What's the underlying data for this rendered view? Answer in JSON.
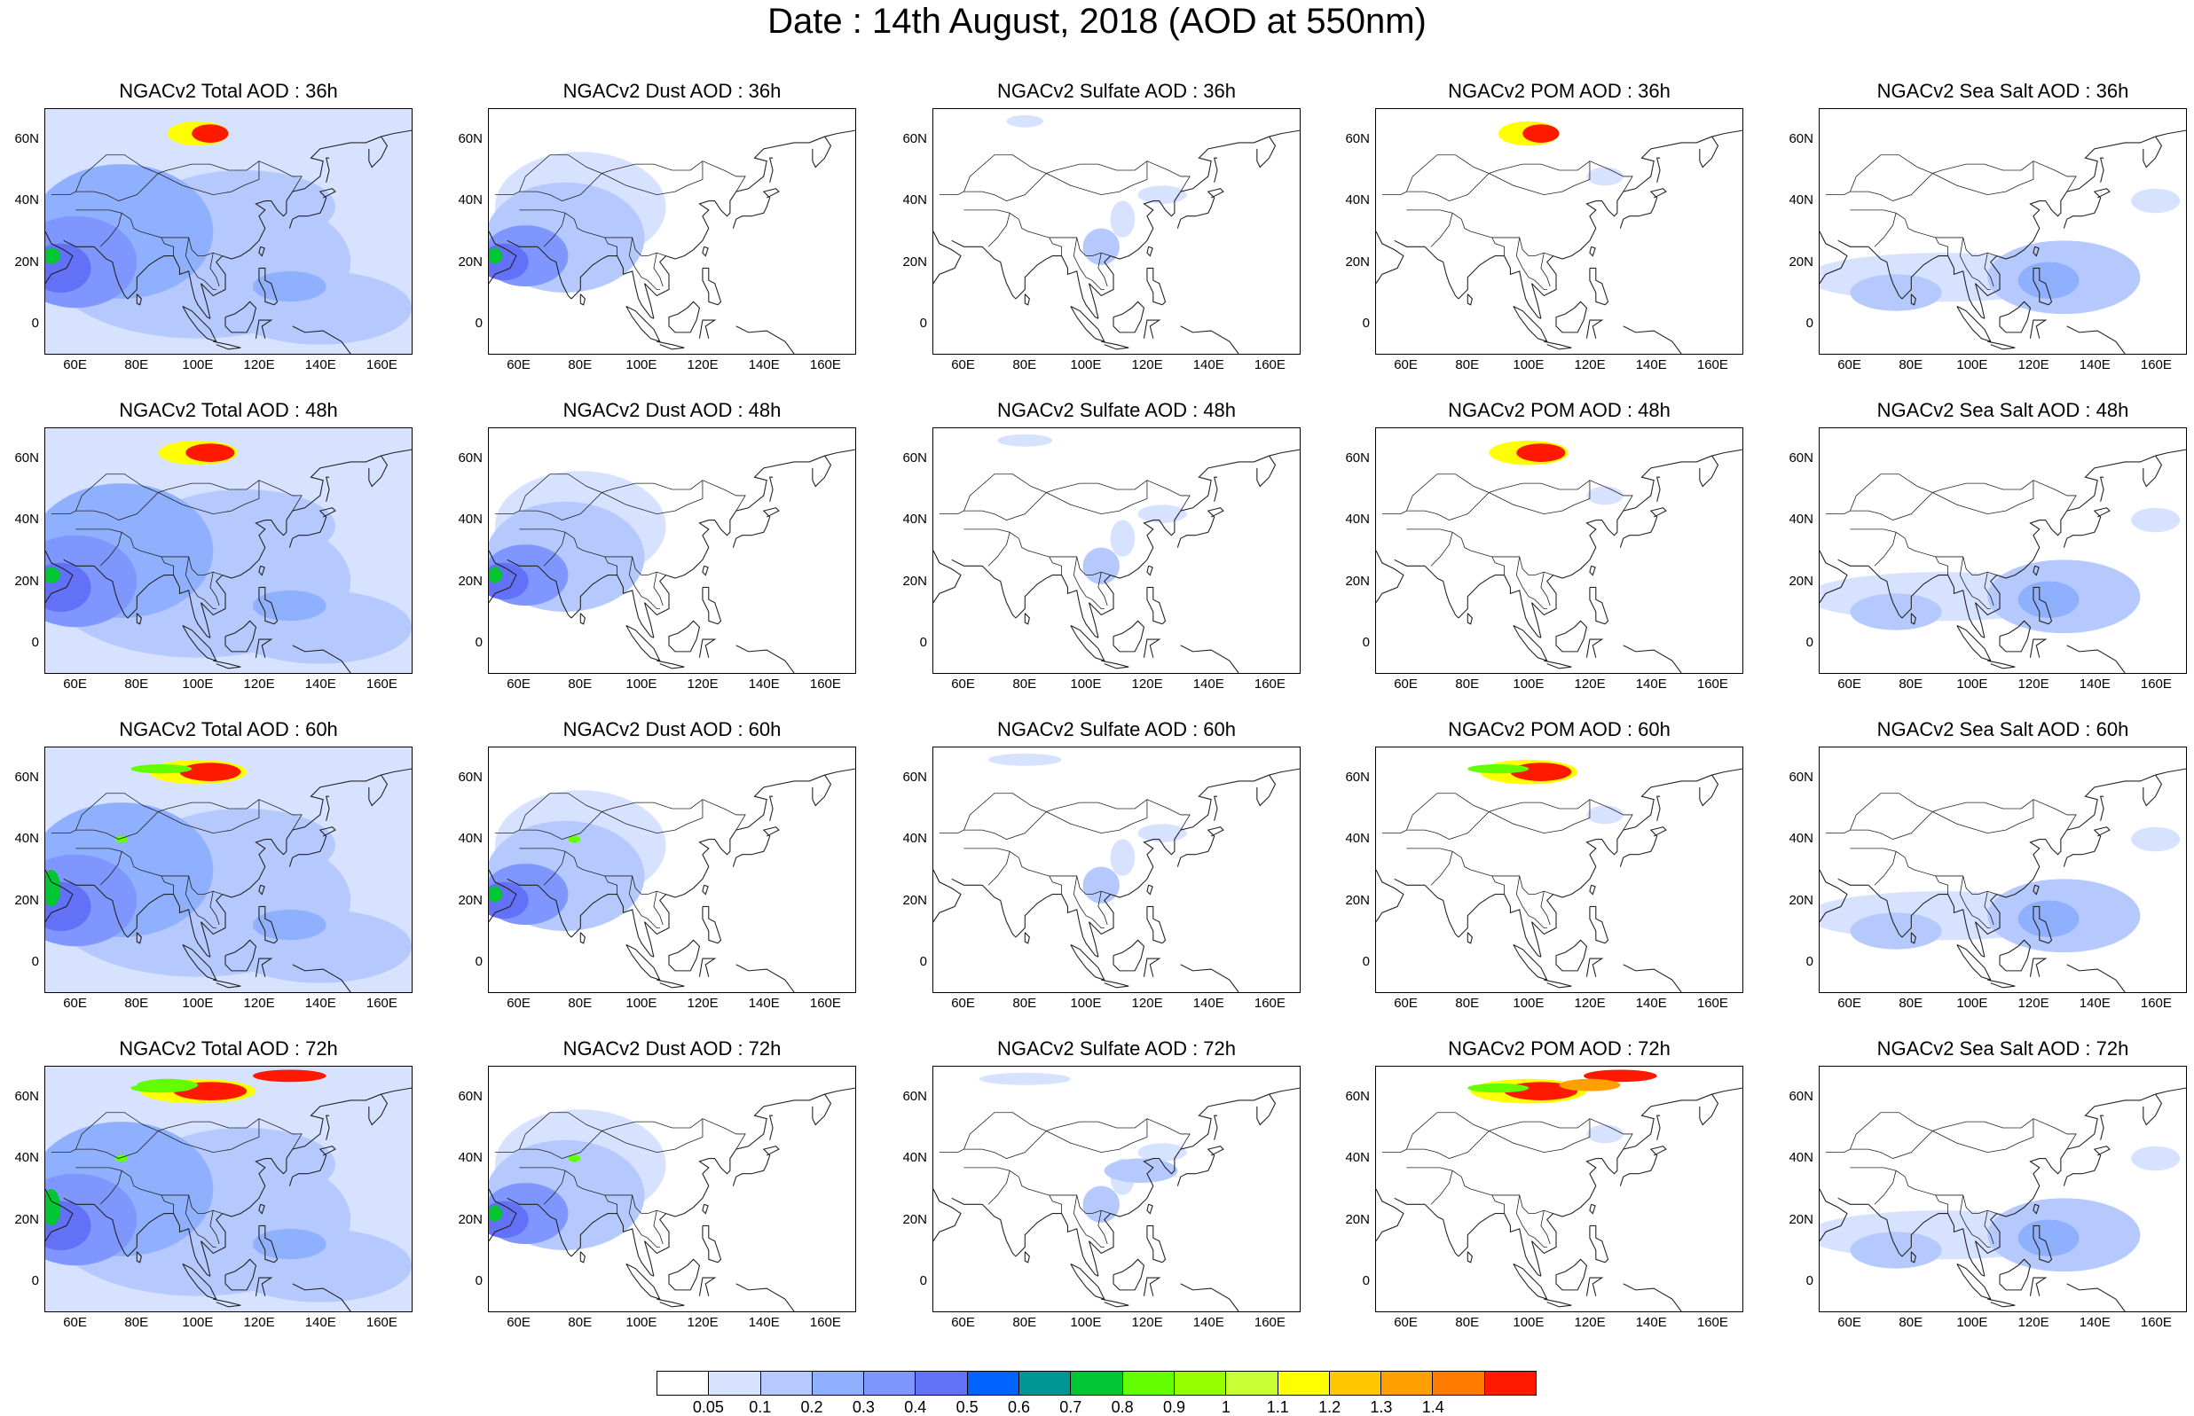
{
  "title": "Date : 14th August, 2018 (AOD at 550nm)",
  "axes": {
    "y_ticks": [
      "60N",
      "40N",
      "20N",
      "0"
    ],
    "x_ticks": [
      "60E",
      "80E",
      "100E",
      "120E",
      "140E",
      "160E"
    ]
  },
  "panels": [
    {
      "title": "NGACv2 Total AOD : 36h",
      "species": "total",
      "lead": "36h"
    },
    {
      "title": "NGACv2 Dust AOD : 36h",
      "species": "dust",
      "lead": "36h"
    },
    {
      "title": "NGACv2 Sulfate AOD : 36h",
      "species": "sulfate",
      "lead": "36h"
    },
    {
      "title": "NGACv2 POM AOD : 36h",
      "species": "pom",
      "lead": "36h"
    },
    {
      "title": "NGACv2 Sea Salt AOD : 36h",
      "species": "seasalt",
      "lead": "36h"
    },
    {
      "title": "NGACv2 Total AOD : 48h",
      "species": "total",
      "lead": "48h"
    },
    {
      "title": "NGACv2 Dust AOD : 48h",
      "species": "dust",
      "lead": "48h"
    },
    {
      "title": "NGACv2 Sulfate AOD : 48h",
      "species": "sulfate",
      "lead": "48h"
    },
    {
      "title": "NGACv2 POM AOD : 48h",
      "species": "pom",
      "lead": "48h"
    },
    {
      "title": "NGACv2 Sea Salt AOD : 48h",
      "species": "seasalt",
      "lead": "48h"
    },
    {
      "title": "NGACv2 Total AOD : 60h",
      "species": "total",
      "lead": "60h"
    },
    {
      "title": "NGACv2 Dust AOD : 60h",
      "species": "dust",
      "lead": "60h"
    },
    {
      "title": "NGACv2 Sulfate AOD : 60h",
      "species": "sulfate",
      "lead": "60h"
    },
    {
      "title": "NGACv2 POM AOD : 60h",
      "species": "pom",
      "lead": "60h"
    },
    {
      "title": "NGACv2 Sea Salt AOD : 60h",
      "species": "seasalt",
      "lead": "60h"
    },
    {
      "title": "NGACv2 Total AOD : 72h",
      "species": "total",
      "lead": "72h"
    },
    {
      "title": "NGACv2 Dust AOD : 72h",
      "species": "dust",
      "lead": "72h"
    },
    {
      "title": "NGACv2 Sulfate AOD : 72h",
      "species": "sulfate",
      "lead": "72h"
    },
    {
      "title": "NGACv2 POM AOD : 72h",
      "species": "pom",
      "lead": "72h"
    },
    {
      "title": "NGACv2 Sea Salt  AOD : 72h",
      "species": "seasalt",
      "lead": "72h"
    }
  ],
  "colorbar": {
    "labels": [
      "0.05",
      "0.1",
      "0.2",
      "0.3",
      "0.4",
      "0.5",
      "0.6",
      "0.7",
      "0.8",
      "0.9",
      "1",
      "1.1",
      "1.2",
      "1.3",
      "1.4"
    ],
    "colors": [
      "#ffffff",
      "#d6e2ff",
      "#b5c9ff",
      "#8fb0ff",
      "#7f96ff",
      "#6370f8",
      "#0063ff",
      "#009696",
      "#00c633",
      "#63ff00",
      "#96ff00",
      "#c6ff33",
      "#ffff00",
      "#ffc600",
      "#ffa000",
      "#ff7c00",
      "#ff1900"
    ]
  }
}
